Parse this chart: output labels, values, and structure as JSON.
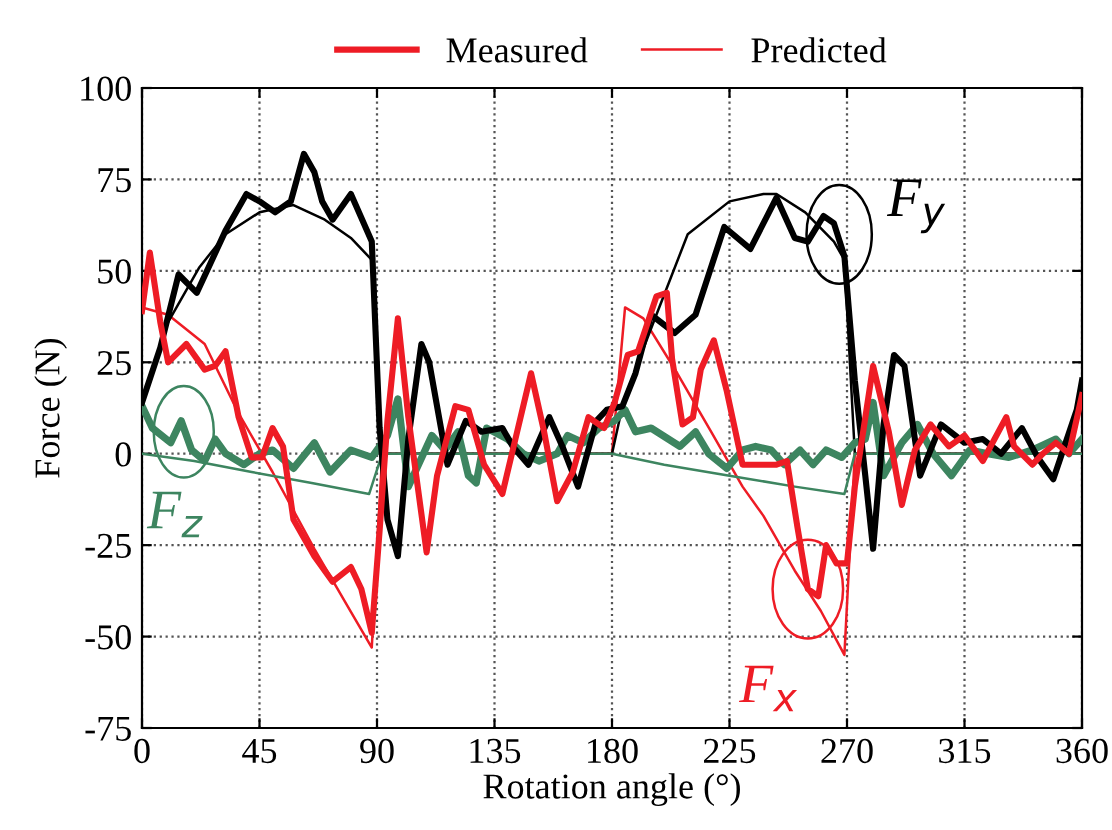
{
  "chart_data": {
    "type": "line",
    "xlabel": "Rotation angle (°)",
    "ylabel": "Force (N)",
    "xlim": [
      0,
      360
    ],
    "ylim": [
      -75,
      100
    ],
    "xticks": [
      0,
      45,
      90,
      135,
      180,
      225,
      270,
      315,
      360
    ],
    "yticks": [
      -75,
      -50,
      -25,
      0,
      25,
      50,
      75,
      100
    ],
    "grid": true,
    "legend": "top",
    "line_style": "solid",
    "marker": "none",
    "annotations": [
      {
        "text": "F$_{z}$",
        "x": 16,
        "y": 6
      },
      {
        "text": "F$_{y}$",
        "x": 267,
        "y": 60
      },
      {
        "text": "F$_{x}$",
        "x": 255,
        "y": -37
      }
    ],
    "series": [
      {
        "name": "Measured",
        "color": "#ee1c25",
        "x": [
          0,
          3,
          7,
          10,
          17,
          24,
          28,
          32,
          37,
          42,
          46,
          50,
          54,
          58,
          66,
          73,
          80,
          84,
          88,
          91,
          94,
          98,
          102,
          109,
          113,
          120,
          125,
          131,
          138,
          143,
          149,
          154,
          159,
          165,
          171,
          177,
          181,
          186,
          190,
          197,
          201,
          203,
          207,
          211,
          214,
          219,
          224,
          230,
          243,
          247,
          251,
          255,
          259,
          262,
          266,
          270,
          273,
          280,
          286,
          291,
          296,
          302,
          309,
          315,
          322,
          331,
          334,
          341,
          345,
          350,
          355,
          360
        ],
        "values": [
          39,
          55,
          36,
          25,
          30,
          23,
          24,
          28,
          10,
          -1,
          -1,
          7,
          2,
          -18,
          -28,
          -35,
          -31,
          -37,
          -49,
          -21,
          9,
          37,
          10,
          -27,
          -6,
          13,
          12,
          -3,
          -11,
          4,
          22,
          6,
          -13,
          -5,
          10,
          7,
          14,
          27,
          28,
          43,
          44,
          26,
          8,
          10,
          23,
          31,
          17,
          -3,
          -3,
          -2,
          -20,
          -37,
          -39,
          -25,
          -30,
          -30,
          -9,
          24,
          6,
          -14,
          1,
          8,
          2,
          5,
          -2,
          10,
          2,
          -3,
          0,
          3,
          0,
          16
        ]
      },
      {
        "name": "Predicted",
        "color": "#ee1c25",
        "x": [
          0,
          10,
          24,
          37,
          50,
          66,
          79,
          88,
          92,
          180,
          185,
          192,
          205,
          218,
          230,
          238,
          250,
          260,
          269,
          273,
          360
        ],
        "values": [
          40,
          38,
          30,
          11,
          -5,
          -26,
          -42,
          -53,
          0,
          0,
          40,
          37,
          22,
          6,
          -9,
          -17,
          -32,
          -43,
          -55,
          0,
          0
        ]
      },
      {
        "color": "#000000",
        "x": [
          0,
          7,
          14,
          21,
          32,
          40,
          45,
          51,
          57,
          62,
          66,
          69,
          73,
          80,
          88,
          91,
          94,
          98,
          102,
          107,
          110,
          117,
          124,
          130,
          138,
          142,
          148,
          156,
          161,
          167,
          174,
          178,
          184,
          189,
          195,
          204,
          212,
          223,
          233,
          243,
          250,
          255,
          261,
          265,
          269,
          273,
          277,
          280,
          284,
          288,
          292,
          298,
          306,
          315,
          322,
          329,
          337,
          343,
          349,
          358,
          360
        ],
        "values": [
          14,
          29,
          49,
          44,
          61,
          71,
          69,
          66,
          69,
          82,
          77,
          69,
          64,
          71,
          58,
          7,
          -18,
          -28,
          4,
          30,
          25,
          -3,
          9,
          6,
          7,
          2,
          -3,
          10,
          2,
          -9,
          9,
          12,
          13,
          22,
          38,
          33,
          38,
          62,
          56,
          70,
          59,
          58,
          65,
          63,
          54,
          20,
          -6,
          -26,
          8,
          27,
          24,
          -6,
          8,
          3,
          4,
          0,
          7,
          -1,
          -7,
          12,
          20
        ]
      },
      {
        "color": "#000000",
        "x": [
          0,
          10,
          22,
          32,
          45,
          58,
          70,
          80,
          88,
          92,
          180,
          184,
          190,
          197,
          209,
          225,
          238,
          243,
          254,
          265,
          269,
          273,
          360
        ],
        "values": [
          14,
          36,
          51,
          60,
          66,
          68,
          64,
          59,
          53,
          0,
          0,
          13,
          25,
          38,
          60,
          69,
          71,
          71,
          66,
          58,
          53,
          0,
          0
        ]
      },
      {
        "color": "#3d8560",
        "x": [
          0,
          4,
          11,
          15,
          19,
          24,
          28,
          32,
          39,
          45,
          50,
          58,
          66,
          72,
          80,
          88,
          94,
          98,
          102,
          111,
          116,
          121,
          125,
          128,
          132,
          140,
          146,
          152,
          159,
          163,
          169,
          175,
          181,
          185,
          189,
          195,
          206,
          212,
          217,
          224,
          230,
          235,
          241,
          246,
          252,
          257,
          262,
          268,
          273,
          277,
          280,
          284,
          291,
          297,
          303,
          310,
          317,
          324,
          332,
          341,
          350,
          355,
          360
        ],
        "values": [
          13,
          7,
          3,
          9,
          1,
          -2,
          4,
          0,
          -3,
          0,
          1,
          -4,
          3,
          -5,
          1,
          -1,
          5,
          15,
          -9,
          5,
          1,
          6,
          -6,
          -8,
          7,
          4,
          0,
          -2,
          0,
          5,
          3,
          7,
          9,
          12,
          6,
          7,
          2,
          6,
          0,
          -4,
          1,
          2,
          1,
          -3,
          1,
          -3,
          1,
          -1,
          3,
          4,
          14,
          -6,
          3,
          8,
          0,
          -6,
          1,
          0,
          -1,
          1,
          4,
          0,
          4
        ]
      },
      {
        "color": "#3d8560",
        "x": [
          0,
          20,
          42,
          65,
          87,
          92,
          180,
          200,
          225,
          250,
          269,
          273,
          360
        ],
        "values": [
          0,
          -2,
          -5,
          -8,
          -11,
          0,
          0,
          -3,
          -6,
          -9,
          -11,
          0,
          0
        ]
      }
    ]
  }
}
